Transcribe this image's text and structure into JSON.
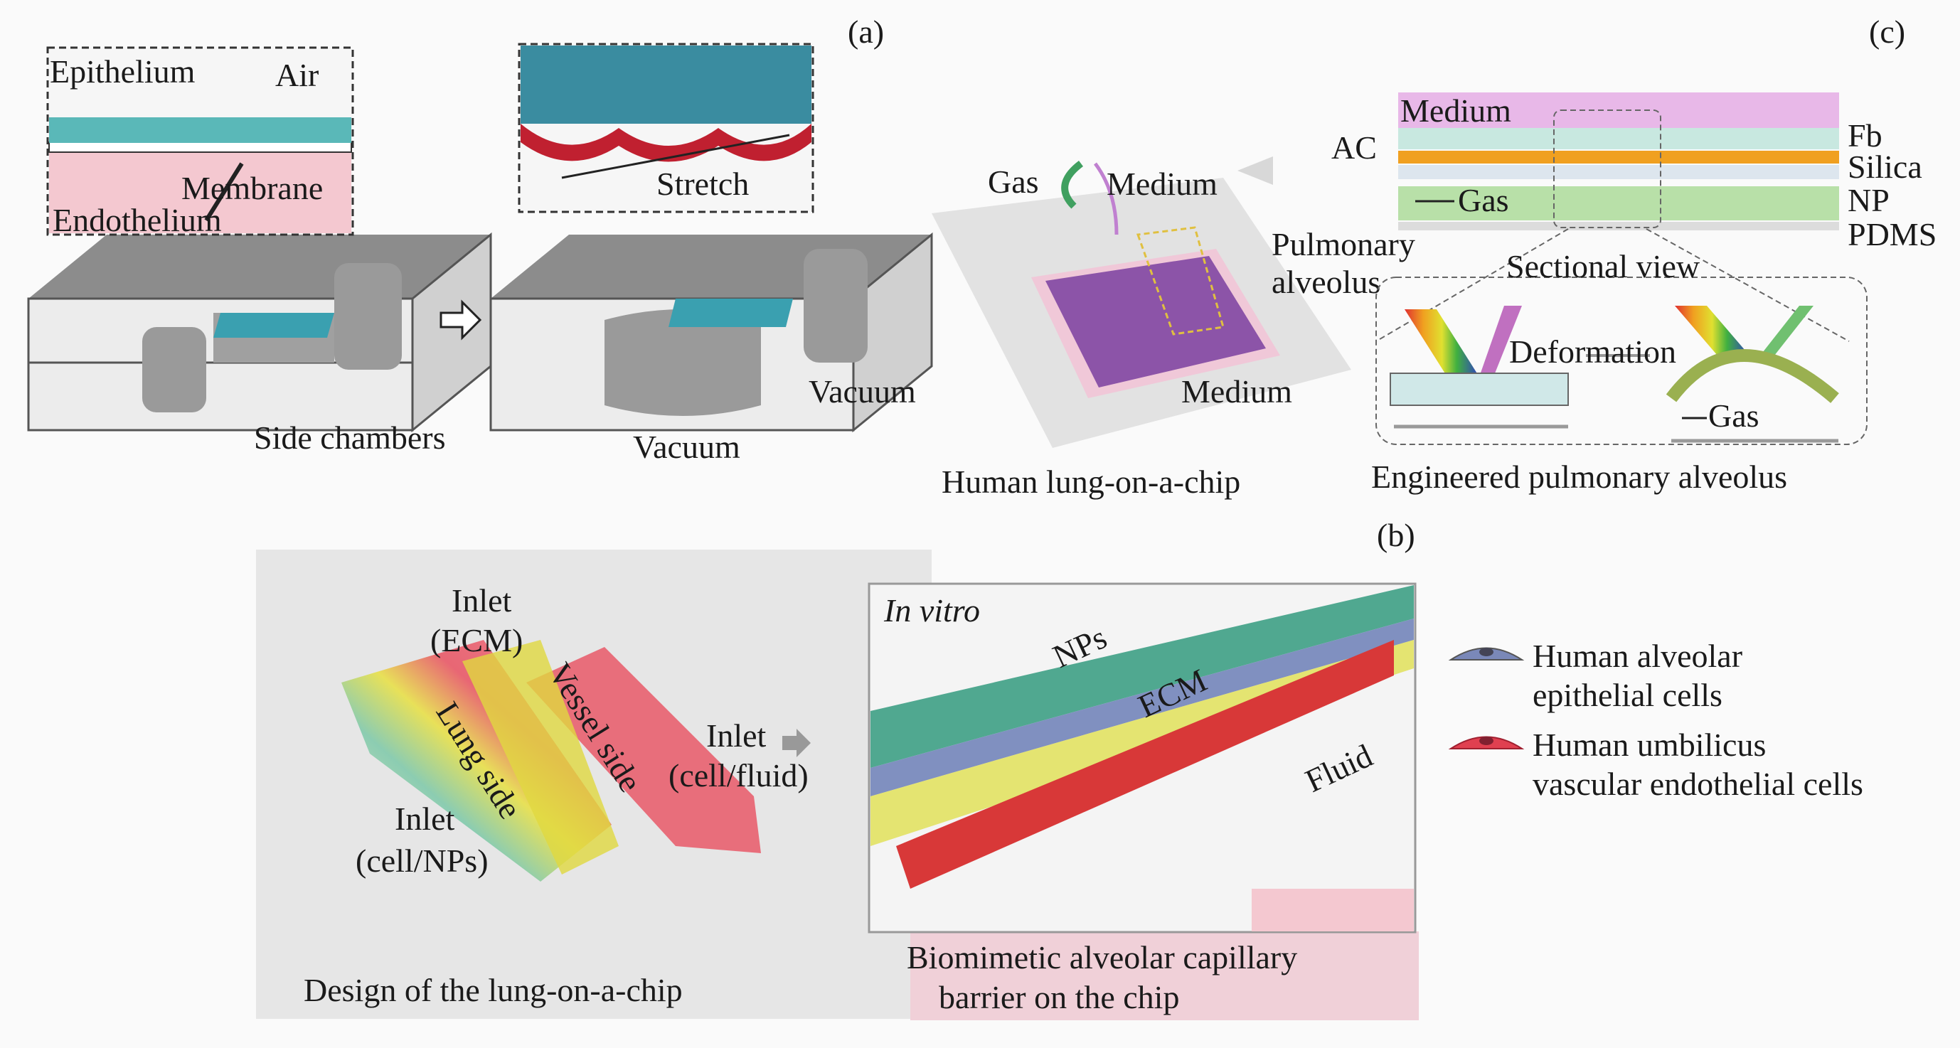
{
  "panel_labels": {
    "a": "(a)",
    "b": "(b)",
    "c": "(c)"
  },
  "panel_a": {
    "inset_left": {
      "epithelium": "Epithelium",
      "air": "Air",
      "membrane": "Membrane",
      "endothelium": "Endothelium"
    },
    "side_chambers": "Side chambers",
    "stretch": "Stretch",
    "vacuum_right": "Vacuum",
    "vacuum_left": "Vacuum",
    "chip": {
      "gas": "Gas",
      "medium_top": "Medium",
      "pulmonary": "Pulmonary",
      "alveolus": "alveolus",
      "medium_bottom": "Medium"
    },
    "chip_caption": "Human lung-on-a-chip"
  },
  "panel_c": {
    "medium": "Medium",
    "ac": "AC",
    "fb": "Fb",
    "silica": "Silica",
    "gas": "Gas",
    "np": "NP",
    "pdms": "PDMS",
    "sectional_view": "Sectional view",
    "deformation": "Deformation",
    "gas_small": "Gas",
    "caption": "Engineered pulmonary alveolus",
    "colors": {
      "medium": "#e8b8e8",
      "silica": "#f0a020",
      "gas": "#b8e0a8"
    }
  },
  "panel_b": {
    "design": {
      "inlet_ecm_1": "Inlet",
      "inlet_ecm_2": "(ECM)",
      "lung_side": "Lung side",
      "vessel_side": "Vessel side",
      "inlet_fluid_1": "Inlet",
      "inlet_fluid_2": "(cell/fluid)",
      "inlet_nps_1": "Inlet",
      "inlet_nps_2": "(cell/NPs)",
      "caption": "Design of the lung-on-a-chip"
    },
    "barrier": {
      "in_vitro": "In vitro",
      "nps": "NPs",
      "ecm": "ECM",
      "fluid": "Fluid",
      "caption_1": "Biomimetic alveolar capillary",
      "caption_2": "barrier on the chip"
    },
    "legend": [
      {
        "line1": "Human alveolar",
        "line2": "epithelial cells",
        "color": "#7a88b8"
      },
      {
        "line1": "Human umbilicus",
        "line2": "vascular endothelial cells",
        "color": "#e04050"
      }
    ]
  }
}
